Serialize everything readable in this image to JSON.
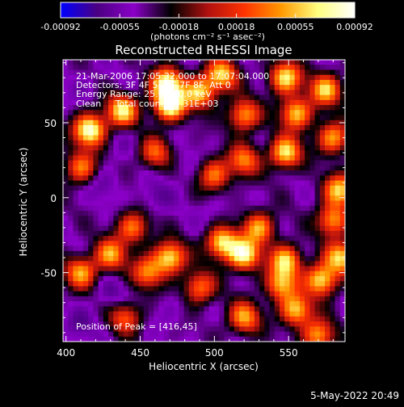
{
  "chart_data": {
    "type": "heatmap",
    "title": "Reconstructed RHESSI Image",
    "xlabel": "Heliocentric X (arcsec)",
    "ylabel": "Heliocentric Y (arcsec)",
    "xlim": [
      398,
      588
    ],
    "ylim": [
      -96,
      92
    ],
    "x_ticks": [
      400,
      450,
      500,
      550
    ],
    "y_ticks": [
      50,
      0,
      -50
    ],
    "colorbar": {
      "min": -0.00092,
      "max": 0.00092,
      "ticks": [
        "-0.00092",
        "-0.00055",
        "-0.00018",
        "0.00018",
        "0.00055",
        "0.00092"
      ],
      "units": "(photons cm⁻² s⁻¹ asec⁻²)",
      "colormap": [
        "#0000ff",
        "#4b0082",
        "#8b00c8",
        "#000000",
        "#b01010",
        "#ff3300",
        "#ff9900",
        "#ffff80",
        "#ffffff"
      ]
    },
    "annotations": [
      "21-Mar-2006 17:05:32.000 to 17:07:04.000",
      "Detectors: 3F 4F 5F 6F 7F 8F, Att 0",
      "Energy Range: 25.0 - 50.0 keV",
      "Clean     Total counts: 2.31E+03"
    ],
    "peak_label": "Position of Peak = [416,45]",
    "peaks": [
      {
        "x": 416,
        "y": 45,
        "v": 0.00092
      },
      {
        "x": 438,
        "y": 58,
        "v": 0.0007
      },
      {
        "x": 470,
        "y": 62,
        "v": 0.0009
      },
      {
        "x": 468,
        "y": 76,
        "v": 0.0008
      },
      {
        "x": 490,
        "y": 70,
        "v": 0.0006
      },
      {
        "x": 505,
        "y": 82,
        "v": 0.0006
      },
      {
        "x": 548,
        "y": 80,
        "v": 0.0007
      },
      {
        "x": 575,
        "y": 72,
        "v": 0.0006
      },
      {
        "x": 520,
        "y": 55,
        "v": 0.0005
      },
      {
        "x": 548,
        "y": 30,
        "v": 0.0007
      },
      {
        "x": 555,
        "y": 56,
        "v": 0.0006
      },
      {
        "x": 580,
        "y": 40,
        "v": 0.0005
      },
      {
        "x": 584,
        "y": 5,
        "v": 0.0006
      },
      {
        "x": 500,
        "y": 15,
        "v": 0.0004
      },
      {
        "x": 520,
        "y": 25,
        "v": 0.0004
      },
      {
        "x": 505,
        "y": -30,
        "v": 0.0007
      },
      {
        "x": 520,
        "y": -38,
        "v": 0.0008
      },
      {
        "x": 530,
        "y": -20,
        "v": 0.0005
      },
      {
        "x": 548,
        "y": -42,
        "v": 0.0006
      },
      {
        "x": 545,
        "y": -58,
        "v": 0.0005
      },
      {
        "x": 572,
        "y": -55,
        "v": 0.0007
      },
      {
        "x": 585,
        "y": -40,
        "v": 0.0006
      },
      {
        "x": 520,
        "y": -80,
        "v": 0.0005
      },
      {
        "x": 555,
        "y": -75,
        "v": 0.0006
      },
      {
        "x": 570,
        "y": -92,
        "v": 0.0005
      },
      {
        "x": 470,
        "y": -40,
        "v": 0.0007
      },
      {
        "x": 455,
        "y": -50,
        "v": 0.0004
      },
      {
        "x": 430,
        "y": -38,
        "v": 0.0005
      },
      {
        "x": 410,
        "y": -50,
        "v": 0.0005
      },
      {
        "x": 445,
        "y": -20,
        "v": 0.0004
      },
      {
        "x": 410,
        "y": 20,
        "v": 0.0004
      },
      {
        "x": 460,
        "y": 30,
        "v": 0.0003
      },
      {
        "x": 490,
        "y": -60,
        "v": 0.0004
      },
      {
        "x": 440,
        "y": -80,
        "v": 0.0003
      },
      {
        "x": 580,
        "y": -15,
        "v": 0.0005
      }
    ],
    "troughs": [
      {
        "x": 425,
        "y": 10,
        "v": -0.0006
      },
      {
        "x": 460,
        "y": 0,
        "v": -0.0006
      },
      {
        "x": 480,
        "y": 20,
        "v": -0.0005
      },
      {
        "x": 430,
        "y": -65,
        "v": -0.0006
      },
      {
        "x": 470,
        "y": -75,
        "v": -0.0005
      },
      {
        "x": 410,
        "y": -85,
        "v": -0.0006
      },
      {
        "x": 500,
        "y": -10,
        "v": -0.0005
      },
      {
        "x": 560,
        "y": 10,
        "v": -0.0004
      },
      {
        "x": 440,
        "y": 40,
        "v": -0.0005
      },
      {
        "x": 410,
        "y": 75,
        "v": -0.0005
      },
      {
        "x": 495,
        "y": -90,
        "v": -0.0004
      },
      {
        "x": 565,
        "y": -25,
        "v": -0.0004
      }
    ]
  },
  "footer_timestamp": "5-May-2022 20:49"
}
